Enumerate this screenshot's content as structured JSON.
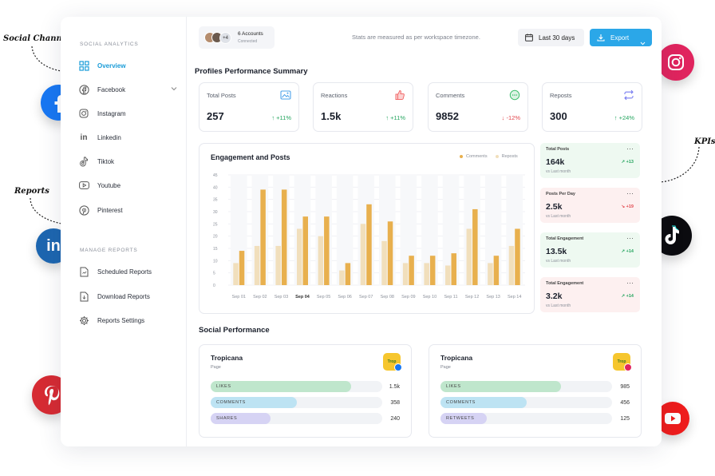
{
  "callouts": {
    "social_channels": "Social Channels",
    "reports": "Reports",
    "kpis": "KPIs"
  },
  "sidebar": {
    "section1": "SOCIAL ANALYTICS",
    "items": [
      {
        "label": "Overview",
        "icon": "grid-icon",
        "active": true
      },
      {
        "label": "Facebook",
        "icon": "facebook-icon"
      },
      {
        "label": "Instagram",
        "icon": "instagram-icon"
      },
      {
        "label": "Linkedin",
        "icon": "linkedin-icon"
      },
      {
        "label": "Tiktok",
        "icon": "tiktok-icon"
      },
      {
        "label": "Youtube",
        "icon": "youtube-icon"
      },
      {
        "label": "Pinterest",
        "icon": "pinterest-icon"
      }
    ],
    "section2": "MANAGE REPORTS",
    "reports": [
      {
        "label": "Scheduled Reports",
        "icon": "document-icon"
      },
      {
        "label": "Download Reports",
        "icon": "download-document-icon"
      },
      {
        "label": "Reports Settings",
        "icon": "gear-icon"
      }
    ]
  },
  "topbar": {
    "accounts_count_badge": "+4",
    "accounts_label": "6 Accounts",
    "accounts_status": "Connected",
    "tz_note": "Stats are measured as per workspace timezone.",
    "date_range": "Last 30 days",
    "export_label": "Export"
  },
  "summary": {
    "title": "Profiles Performance Summary",
    "kpis": [
      {
        "title": "Total Posts",
        "value": "257",
        "change": "+11%",
        "dir": "up",
        "icon": "image-icon",
        "color": "#4ea3ea"
      },
      {
        "title": "Reactions",
        "value": "1.5k",
        "change": "+11%",
        "dir": "up",
        "icon": "thumbs-up-icon",
        "color": "#f26b6b"
      },
      {
        "title": "Comments",
        "value": "9852",
        "change": "-12%",
        "dir": "down",
        "icon": "chat-icon",
        "color": "#3fbf6e"
      },
      {
        "title": "Reposts",
        "value": "300",
        "change": "+24%",
        "dir": "up",
        "icon": "repeat-icon",
        "color": "#7a7ff0"
      }
    ]
  },
  "chart_data": {
    "type": "bar",
    "title": "Engagement and Posts",
    "categories": [
      "Sep 01",
      "Sep 02",
      "Sep 03",
      "Sep 04",
      "Sep 05",
      "Sep 06",
      "Sep 07",
      "Sep 08",
      "Sep 09",
      "Sep 10",
      "Sep 11",
      "Sep 12",
      "Sep 13",
      "Sep 14"
    ],
    "series": [
      {
        "name": "Comments",
        "color": "#e8b04e",
        "values": [
          14,
          39,
          39,
          28,
          28,
          9,
          33,
          26,
          12,
          12,
          13,
          31,
          12,
          23
        ]
      },
      {
        "name": "Reposts",
        "color": "#f1dfbc",
        "values": [
          9,
          16,
          16,
          23,
          20,
          6,
          25,
          18,
          9,
          9,
          8,
          23,
          9,
          16
        ]
      }
    ],
    "yticks": [
      0,
      5,
      10,
      15,
      20,
      25,
      30,
      35,
      40,
      45
    ],
    "ylim": [
      0,
      45
    ],
    "highlight_category": "Sep 04",
    "legend": "top-right",
    "grid": true
  },
  "kpi_side": [
    {
      "title": "Total Posts",
      "value": "164k",
      "sub": "vs Last month",
      "change": "+13",
      "dir": "up",
      "bg": "#eef9f1"
    },
    {
      "title": "Posts Per Day",
      "value": "2.5k",
      "sub": "vs Last month",
      "change": "+19",
      "dir": "down",
      "bg": "#fdf0f0"
    },
    {
      "title": "Total Engagement",
      "value": "13.5k",
      "sub": "vs Last month",
      "change": "+14",
      "dir": "up",
      "bg": "#eef9f1"
    },
    {
      "title": "Total Engagement",
      "value": "3.2k",
      "sub": "vs Last month",
      "change": "+14",
      "dir": "up",
      "bg": "#fdf0f0"
    }
  ],
  "social": {
    "title": "Social Performance",
    "cards": [
      {
        "name": "Tropicana",
        "type": "Page",
        "network": "facebook-icon",
        "rows": [
          {
            "label": "LIKES",
            "value": "1.5k",
            "fill": 0.82,
            "color": "#bfe6cc"
          },
          {
            "label": "COMMENTS",
            "value": "358",
            "fill": 0.5,
            "color": "#bde3f3"
          },
          {
            "label": "SHARES",
            "value": "240",
            "fill": 0.35,
            "color": "#d6d3f4"
          }
        ]
      },
      {
        "name": "Tropicana",
        "type": "Page",
        "network": "instagram-icon",
        "rows": [
          {
            "label": "LIKES",
            "value": "985",
            "fill": 0.7,
            "color": "#bfe6cc"
          },
          {
            "label": "COMMENTS",
            "value": "456",
            "fill": 0.5,
            "color": "#bde3f3"
          },
          {
            "label": "RETWEETS",
            "value": "125",
            "fill": 0.27,
            "color": "#d6d3f4"
          }
        ]
      }
    ]
  }
}
